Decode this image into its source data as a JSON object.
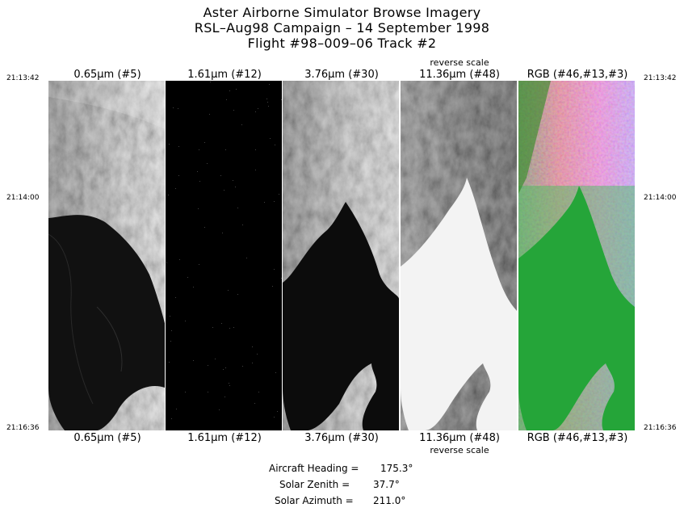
{
  "title": {
    "line1": "Aster Airborne Simulator Browse Imagery",
    "line2": "RSL–Aug98 Campaign – 14 September 1998",
    "line3": "Flight #98–009–06 Track #2"
  },
  "times": {
    "start": "21:13:42",
    "middle": "21:14:00",
    "end": "21:16:36"
  },
  "bands": [
    {
      "label": "0.65μm (#5)",
      "note": ""
    },
    {
      "label": "1.61μm (#12)",
      "note": ""
    },
    {
      "label": "3.76μm (#30)",
      "note": ""
    },
    {
      "label": "11.36μm (#48)",
      "note": "reverse scale"
    },
    {
      "label": "RGB (#46,#13,#3)",
      "note": ""
    }
  ],
  "footer": {
    "heading_label": "Aircraft Heading =",
    "heading_value": "175.3°",
    "zenith_label": "Solar Zenith =",
    "zenith_value": "37.7°",
    "azimuth_label": "Solar Azimuth =",
    "azimuth_value": "211.0°"
  }
}
